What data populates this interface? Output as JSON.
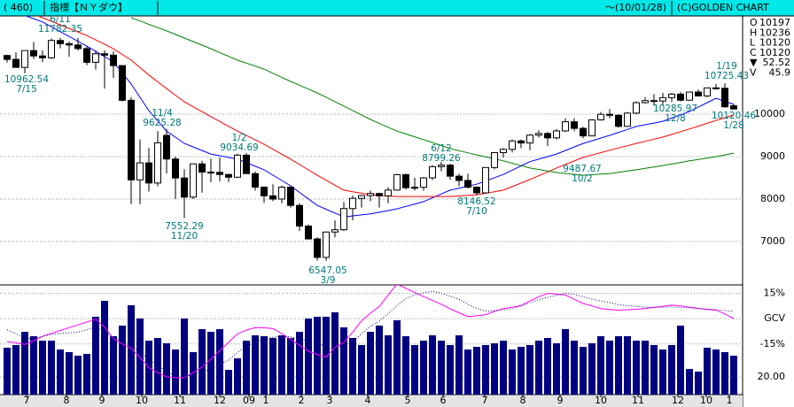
{
  "header": {
    "code": "( 460)",
    "title": "指標【ＮＹダウ】",
    "date": "～(10/01/28)",
    "copyright": "(C)GOLDEN CHART"
  },
  "info": [
    {
      "key": "O",
      "value": 10197
    },
    {
      "key": "H",
      "value": 10236
    },
    {
      "key": "L",
      "value": 10120
    },
    {
      "key": "C",
      "value": 10120
    },
    {
      "key": "▼",
      "value": 52.52
    },
    {
      "key": "V",
      "value": 45.9
    }
  ],
  "chart_data": {
    "type": "candlestick",
    "open": [
      11380,
      11290,
      11100,
      11496,
      11370,
      11326,
      11734,
      11659,
      11628,
      11543,
      11220,
      11421,
      11388,
      11143,
      10325,
      8451,
      8852,
      8378,
      9500,
      8943,
      8497,
      8046,
      8829,
      8635,
      8629,
      8579,
      8515,
      9034,
      8599,
      8281,
      8077,
      8000,
      8280,
      7850,
      7365,
      7062,
      6627,
      7224,
      7278,
      7776,
      8017,
      8083,
      8131,
      8076,
      8212,
      8575,
      8268,
      8277,
      8500,
      8763,
      8799,
      8539,
      8438,
      8280,
      8146,
      8743,
      9093,
      9171,
      9370,
      9321,
      9505,
      9544,
      9441,
      9605,
      9820,
      9665,
      9487,
      9864,
      9995,
      9972,
      9712,
      10023,
      10270,
      10318,
      10309,
      10388,
      10471,
      10328,
      10520,
      10428,
      10618,
      10609,
      10197
    ],
    "high": [
      11400,
      11460,
      11500,
      11700,
      11500,
      11782,
      11800,
      11710,
      11790,
      11600,
      11500,
      11500,
      11480,
      11150,
      10400,
      9400,
      9200,
      9600,
      9650,
      9000,
      8700,
      8830,
      8900,
      8950,
      8980,
      8600,
      9065,
      9088,
      8650,
      8300,
      8350,
      8315,
      8300,
      7900,
      7400,
      7100,
      7240,
      7500,
      7930,
      8080,
      8100,
      8200,
      8150,
      8280,
      8600,
      8600,
      8500,
      8520,
      8800,
      8877,
      8830,
      8600,
      8600,
      8300,
      8750,
      9100,
      9200,
      9400,
      9400,
      9530,
      9620,
      9580,
      9650,
      9900,
      9900,
      9700,
      9870,
      10050,
      10120,
      10000,
      10050,
      10300,
      10400,
      10470,
      10500,
      10500,
      10520,
      10530,
      10580,
      10620,
      10710,
      10725.43,
      10236
    ],
    "low": [
      11215,
      11100,
      10962.54,
      11300,
      11220,
      11300,
      11550,
      11350,
      11500,
      11150,
      11050,
      10600,
      10850,
      10300,
      7880,
      7880,
      8175,
      8300,
      8600,
      8000,
      7552.29,
      8000,
      8150,
      8400,
      8419,
      8400,
      8500,
      8599,
      8200,
      7910,
      7950,
      7900,
      7800,
      7250,
      7050,
      6550,
      6547.05,
      7100,
      7250,
      7500,
      7800,
      7950,
      7800,
      7900,
      8200,
      8230,
      8200,
      8200,
      8450,
      8650,
      8450,
      8300,
      8250,
      8087,
      8140,
      8700,
      8980,
      9100,
      9200,
      9150,
      9450,
      9250,
      9400,
      9580,
      9600,
      9430,
      9480,
      9850,
      9900,
      9680,
      9700,
      10000,
      10250,
      10200,
      10200,
      10285.97,
      10300,
      10320,
      10420,
      10400,
      10580,
      10150,
      10120
    ],
    "close": [
      11288,
      11100,
      11496,
      11370,
      11326,
      11734,
      11659,
      11628,
      11543,
      11220,
      11421,
      11388,
      11143,
      10325,
      8451,
      8852,
      8378,
      9325,
      8943,
      8497,
      8046,
      8829,
      8635,
      8629,
      8579,
      8515,
      9034,
      8599,
      8281,
      8077,
      8000,
      8280,
      7850,
      7365,
      7062,
      6627,
      7224,
      7278,
      7776,
      8017,
      8083,
      8131,
      8076,
      8212,
      8575,
      8268,
      8277,
      8500,
      8763,
      8799,
      8539,
      8438,
      8280,
      8146,
      8743,
      9093,
      9171,
      9370,
      9321,
      9505,
      9544,
      9441,
      9605,
      9820,
      9665,
      9487,
      9864,
      9995,
      9972,
      9712,
      10023,
      10270,
      10318,
      10309,
      10388,
      10471,
      10328,
      10520,
      10428,
      10618,
      10609,
      10172,
      10120
    ],
    "up_color": "#ffffff",
    "down_color": "#000000",
    "ylim": [
      6000,
      12312
    ],
    "yticks": [
      7000,
      8000,
      9000,
      10000
    ],
    "grid": true,
    "x_labels": [
      {
        "value": 2.2,
        "label": "7"
      },
      {
        "value": 6.7,
        "label": "8"
      },
      {
        "value": 10.7,
        "label": "9"
      },
      {
        "value": 15.2,
        "label": "10"
      },
      {
        "value": 19.5,
        "label": "11"
      },
      {
        "value": 24,
        "label": "12"
      },
      {
        "value": 27.3,
        "label": "09"
      },
      {
        "value": 29.2,
        "label": "1"
      },
      {
        "value": 33.2,
        "label": "2"
      },
      {
        "value": 36.4,
        "label": "3"
      },
      {
        "value": 40.7,
        "label": "4"
      },
      {
        "value": 45.2,
        "label": "5"
      },
      {
        "value": 49.2,
        "label": "6"
      },
      {
        "value": 53.9,
        "label": "7"
      },
      {
        "value": 58.2,
        "label": "8"
      },
      {
        "value": 62.4,
        "label": "9"
      },
      {
        "value": 67,
        "label": "10"
      },
      {
        "value": 71.2,
        "label": "11"
      },
      {
        "value": 75.7,
        "label": "12"
      },
      {
        "value": 78.9,
        "label": "10"
      },
      {
        "value": 81.5,
        "label": "1"
      }
    ],
    "moving_averages": [
      {
        "color": "#0000ff",
        "values": [
          12480,
          12403,
          12325,
          12248,
          12170,
          12056,
          11942,
          11828,
          11714,
          11600,
          11477,
          11353,
          11230,
          10970,
          10710,
          10395,
          10080,
          9840,
          9600,
          9455,
          9310,
          9227,
          9143,
          9060,
          9020,
          8980,
          8940,
          8857,
          8773,
          8690,
          8563,
          8437,
          8310,
          8157,
          8003,
          7850,
          7760,
          7670,
          7580,
          7603,
          7627,
          7650,
          7690,
          7730,
          7770,
          7827,
          7883,
          7940,
          8030,
          8120,
          8210,
          8257,
          8303,
          8350,
          8427,
          8503,
          8580,
          8680,
          8780,
          8880,
          8940,
          9000,
          9060,
          9143,
          9227,
          9310,
          9373,
          9437,
          9500,
          9570,
          9640,
          9710,
          9750,
          9790,
          9830,
          9907,
          9983,
          10060,
          10165,
          10270,
          10375,
          10300,
          10230
        ]
      },
      {
        "color": "#ff0000",
        "values": [
          12606,
          12522,
          12438,
          12354,
          12270,
          12186,
          12102,
          12018,
          11934,
          11850,
          11747,
          11643,
          11540,
          11405,
          11270,
          11095,
          10920,
          10760,
          10600,
          10445,
          10290,
          10173,
          10057,
          9940,
          9827,
          9713,
          9600,
          9497,
          9393,
          9290,
          9173,
          9057,
          8940,
          8813,
          8687,
          8560,
          8443,
          8327,
          8210,
          8173,
          8137,
          8100,
          8087,
          8073,
          8060,
          8060,
          8060,
          8060,
          8060,
          8060,
          8060,
          8073,
          8087,
          8100,
          8137,
          8173,
          8210,
          8293,
          8377,
          8460,
          8550,
          8640,
          8730,
          8813,
          8897,
          8980,
          9037,
          9093,
          9150,
          9203,
          9257,
          9310,
          9360,
          9410,
          9460,
          9523,
          9587,
          9650,
          9717,
          9783,
          9850,
          9915,
          9980
        ]
      },
      {
        "color": "#008000",
        "values": [
          null,
          null,
          null,
          null,
          null,
          null,
          null,
          null,
          null,
          null,
          null,
          null,
          null,
          null,
          12270,
          12193,
          12115,
          12038,
          11960,
          11876,
          11792,
          11708,
          11624,
          11540,
          11450,
          11360,
          11270,
          11200,
          11130,
          11060,
          10963,
          10867,
          10770,
          10680,
          10590,
          10500,
          10397,
          10293,
          10190,
          10085,
          9980,
          9875,
          9783,
          9692,
          9600,
          9533,
          9467,
          9400,
          9330,
          9260,
          9190,
          9140,
          9090,
          9040,
          8993,
          8947,
          8900,
          8843,
          8787,
          8730,
          8695,
          8660,
          8625,
          8603,
          8582,
          8560,
          8573,
          8587,
          8600,
          8630,
          8660,
          8690,
          8723,
          8757,
          8790,
          8827,
          8863,
          8900,
          8933,
          8967,
          9000,
          9040,
          9080
        ]
      }
    ],
    "annotations": [
      {
        "date": "6/11",
        "value": 11782.35
      },
      {
        "date": "7/15",
        "value": 10962.54
      },
      {
        "date": "11/4",
        "value": 9625.28
      },
      {
        "date": "11/20",
        "value": 7552.29
      },
      {
        "date": "1/2",
        "value": 9034.69
      },
      {
        "date": "3/9",
        "value": 6547.05
      },
      {
        "date": "6/12",
        "value": 8799.26
      },
      {
        "date": "7/10",
        "value": 8146.52
      },
      {
        "date": "10/2",
        "value": 9487.67
      },
      {
        "date": "12/8",
        "value": 10285.97
      },
      {
        "date": "1/19",
        "value": 10725.43
      },
      {
        "date": "1/28",
        "value": 10120.46
      }
    ],
    "volume": {
      "color": "#000080",
      "ylim": [
        0,
        120
      ],
      "yticks": [
        {
          "value": 20,
          "label": "20.00"
        }
      ],
      "values": [
        53,
        56,
        71,
        66,
        61,
        61,
        51,
        48,
        44,
        46,
        88,
        106,
        66,
        78,
        101,
        86,
        61,
        64,
        58,
        51,
        86,
        48,
        74,
        71,
        74,
        28,
        41,
        61,
        67,
        66,
        64,
        67,
        64,
        71,
        86,
        88,
        88,
        93,
        76,
        64,
        56,
        71,
        78,
        67,
        84,
        66,
        56,
        61,
        67,
        61,
        56,
        67,
        51,
        54,
        56,
        58,
        61,
        51,
        54,
        56,
        61,
        64,
        58,
        74,
        61,
        54,
        58,
        66,
        61,
        66,
        66,
        61,
        61,
        56,
        51,
        56,
        78,
        29,
        26,
        53,
        51,
        48,
        44
      ]
    },
    "gcv": {
      "ylim": [
        -45,
        20
      ],
      "yticks": [
        {
          "value": 15,
          "label": "15%"
        },
        {
          "value": 0,
          "label": "GCV"
        },
        {
          "value": -15,
          "label": "-15%"
        }
      ],
      "series": [
        {
          "color": "#ff00ff",
          "style": "solid",
          "values": [
            -13.7,
            -14.3,
            -15.3,
            -13,
            -10.5,
            -8.7,
            -7,
            -5.3,
            -3.7,
            -2,
            -0.3,
            -5,
            -11.7,
            -15,
            -17.5,
            -23,
            -29,
            -32,
            -34.5,
            -35,
            -35,
            -32,
            -28.7,
            -24,
            -19,
            -14,
            -9,
            -6.8,
            -5.3,
            -5.4,
            -5.9,
            -8.8,
            -12.3,
            -15.8,
            -19.3,
            -21.2,
            -22.7,
            -17,
            -14,
            -8,
            -1.3,
            3.2,
            7.2,
            14,
            20.5,
            17.9,
            15.5,
            13.1,
            10.8,
            8.5,
            5.8,
            3.5,
            1.3,
            1.7,
            2.4,
            4.3,
            6,
            6.8,
            7.8,
            10.5,
            13,
            15,
            14.5,
            14,
            11.5,
            9,
            7.5,
            6,
            5.5,
            5,
            5.3,
            5.6,
            6,
            6.7,
            7.3,
            8,
            7.5,
            6.8,
            6.1,
            5.5,
            5,
            2.8,
            0
          ]
        },
        {
          "color": "#000080",
          "style": "dotted",
          "values": [
            -6.5,
            -9,
            -11.5,
            -12,
            -10.5,
            -9.3,
            -8.8,
            -8.4,
            -8,
            -6.5,
            -5,
            -8,
            -11.3,
            -13.5,
            -16,
            -20,
            -24,
            -28,
            -31,
            -34,
            -34.5,
            -33,
            -31.5,
            -30,
            -27,
            -24.5,
            -20,
            -16.5,
            -13.7,
            -12.3,
            -11,
            -10.2,
            -10.8,
            -12,
            -13,
            -14.5,
            -16.5,
            -17.5,
            -15.5,
            -13.5,
            -9,
            -4.5,
            -1.5,
            3,
            7.5,
            12,
            14.2,
            15.3,
            16.3,
            15,
            13.3,
            11.5,
            8.5,
            6,
            4.5,
            4.7,
            5.3,
            5.9,
            7.6,
            9.5,
            11.3,
            12.6,
            13.8,
            15,
            14.5,
            13,
            11.6,
            10.5,
            9.5,
            8.3,
            7.7,
            7.2,
            6.8,
            6.7,
            6.8,
            7,
            6.7,
            6.4,
            6,
            5.7,
            5.3,
            4.8,
            4.3
          ]
        }
      ]
    }
  }
}
